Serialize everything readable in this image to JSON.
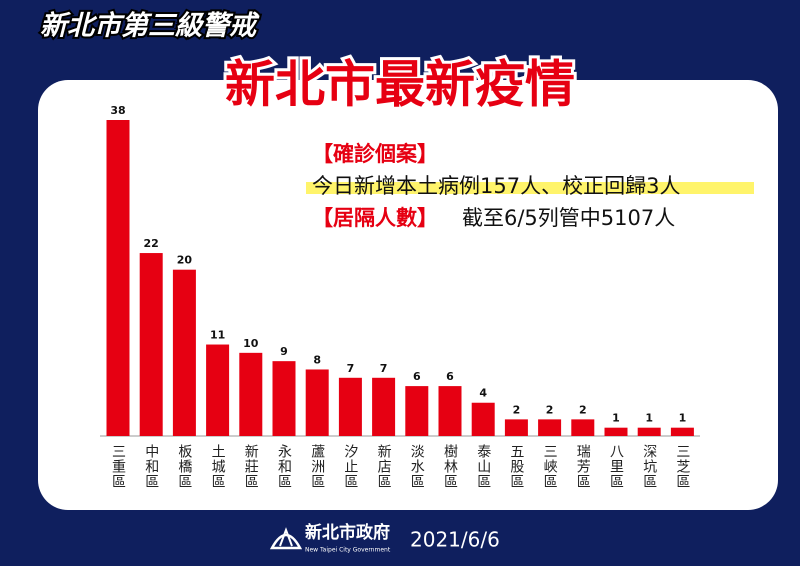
{
  "header": {
    "badge": "新北市第三級警戒",
    "title": "新北市最新疫情"
  },
  "info": {
    "cases_label": "【確診個案】",
    "cases_text": "今日新增本土病例157人、校正回歸3人",
    "quarantine_label": "【居隔人數】",
    "quarantine_text": "截至6/5列管中5107人"
  },
  "chart_data": {
    "type": "bar",
    "categories": [
      "三重區",
      "中和區",
      "板橋區",
      "土城區",
      "新莊區",
      "永和區",
      "蘆洲區",
      "汐止區",
      "新店區",
      "淡水區",
      "樹林區",
      "泰山區",
      "五股區",
      "三峽區",
      "瑞芳區",
      "八里區",
      "深坑區",
      "三芝區"
    ],
    "values": [
      38,
      22,
      20,
      11,
      10,
      9,
      8,
      7,
      7,
      6,
      6,
      4,
      2,
      2,
      2,
      1,
      1,
      1
    ],
    "color": "#e60012"
  },
  "footer": {
    "org": "新北市政府",
    "org_en": "New Taipei City Government",
    "date": "2021/6/6"
  }
}
